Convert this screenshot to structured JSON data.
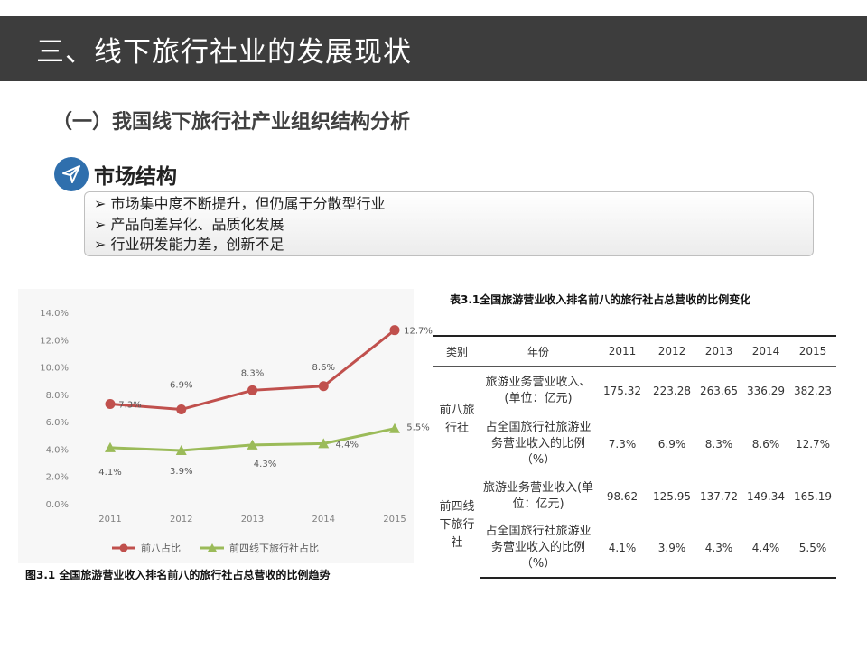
{
  "header": {
    "title": "三、线下旅行社业的发展现状"
  },
  "subtitle": "（一）我国线下旅行社产业组织结构分析",
  "section": {
    "icon": "paper-plane-icon",
    "title": "市场结构"
  },
  "bullets": [
    "市场集中度不断提升，但仍属于分散型行业",
    "产品向差异化、品质化发展",
    "行业研发能力差，创新不足"
  ],
  "chart_data": {
    "type": "line",
    "categories": [
      "2011",
      "2012",
      "2013",
      "2014",
      "2015"
    ],
    "y_ticks": [
      "0.0%",
      "2.0%",
      "4.0%",
      "6.0%",
      "8.0%",
      "10.0%",
      "12.0%",
      "14.0%"
    ],
    "ylim": [
      0,
      14
    ],
    "grid": false,
    "legend": "bottom",
    "series": [
      {
        "name": "前八占比",
        "values": [
          7.3,
          6.9,
          8.3,
          8.6,
          12.7
        ],
        "labels": [
          "7.3%",
          "6.9%",
          "8.3%",
          "8.6%",
          "12.7%"
        ],
        "color": "#c0504d",
        "marker": "circle"
      },
      {
        "name": "前四线下旅行社占比",
        "values": [
          4.1,
          3.9,
          4.3,
          4.4,
          5.5
        ],
        "labels": [
          "4.1%",
          "3.9%",
          "4.3%",
          "4.4%",
          "5.5%"
        ],
        "color": "#9bbb59",
        "marker": "triangle"
      }
    ]
  },
  "figure_caption": "图3.1 全国旅游营业收入排名前八的旅行社占总营收的比例趋势",
  "table": {
    "title": "表3.1全国旅游营业收入排名前八的旅行社占总营收的比例变化",
    "header": {
      "category": "类别",
      "year": "年份",
      "years": [
        "2011",
        "2012",
        "2013",
        "2014",
        "2015"
      ]
    },
    "groups": [
      {
        "label": "前八旅行社",
        "rows": [
          {
            "indicator": "旅游业务营业收入、(单位：亿元)",
            "values": [
              "175.32",
              "223.28",
              "263.65",
              "336.29",
              "382.23"
            ]
          },
          {
            "indicator": "占全国旅行社旅游业务营业收入的比例（%）",
            "values": [
              "7.3%",
              "6.9%",
              "8.3%",
              "8.6%",
              "12.7%"
            ]
          }
        ]
      },
      {
        "label": "前四线下旅行社",
        "rows": [
          {
            "indicator": "旅游业务营业收入(单位：亿元)",
            "values": [
              "98.62",
              "125.95",
              "137.72",
              "149.34",
              "165.19"
            ]
          },
          {
            "indicator": "占全国旅行社旅游业务营业收入的比例（%）",
            "values": [
              "4.1%",
              "3.9%",
              "4.3%",
              "4.4%",
              "5.5%"
            ]
          }
        ]
      }
    ]
  }
}
